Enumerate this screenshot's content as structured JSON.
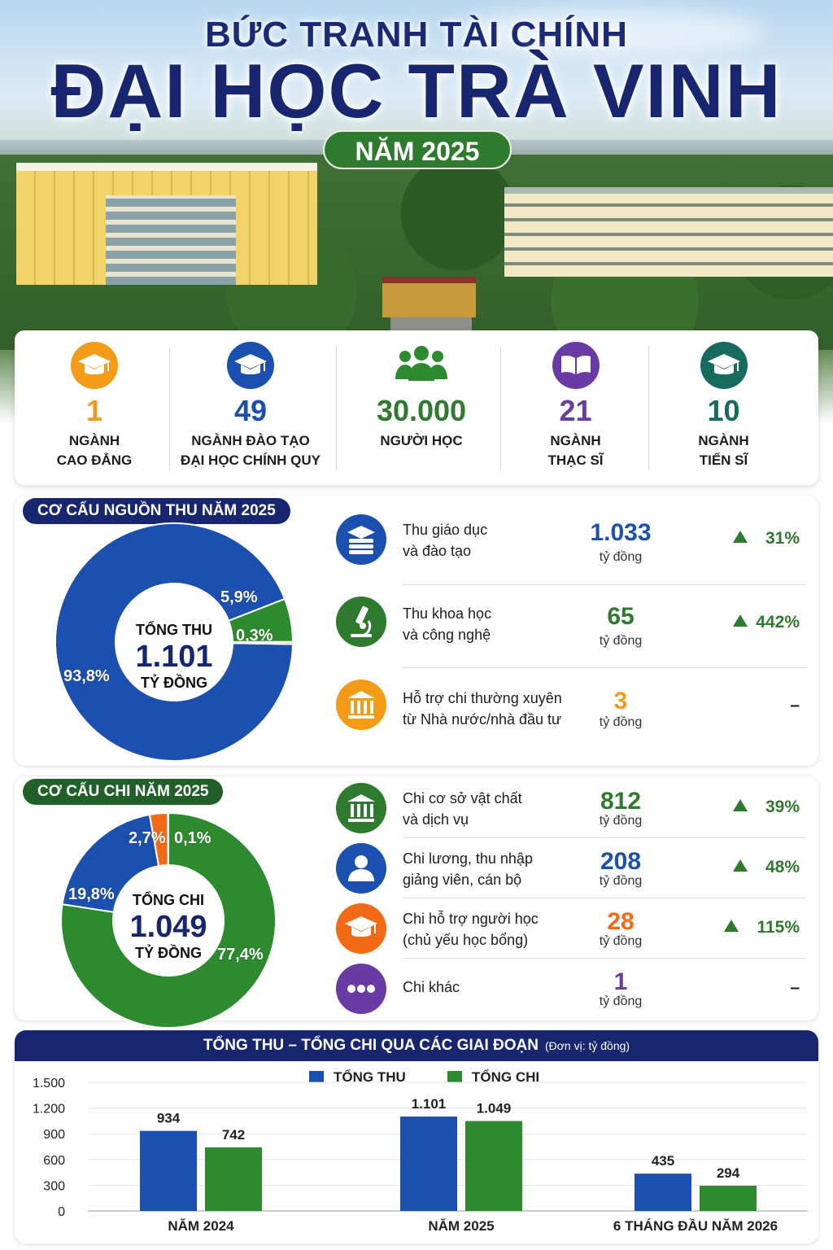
{
  "header": {
    "title_line1": "BỨC TRANH TÀI CHÍNH",
    "title_line2": "ĐẠI HỌC TRÀ VINH",
    "year": "NĂM 2025"
  },
  "stats": [
    {
      "number": "1",
      "label": "NGÀNH\nCAO ĐẲNG",
      "color": "#f39a16",
      "icon": "graduation-cap-icon"
    },
    {
      "number": "49",
      "label": "NGÀNH ĐÀO TẠO\nĐẠI HỌC CHÍNH QUY",
      "color": "#1b4fb0",
      "icon": "graduation-cap-icon"
    },
    {
      "number": "30.000",
      "label": "NGƯỜI HỌC",
      "color": "#2e7a2e",
      "icon": "people-icon"
    },
    {
      "number": "21",
      "label": "NGÀNH\nTHẠC SĨ",
      "color": "#6a3aa5",
      "icon": "open-book-icon"
    },
    {
      "number": "10",
      "label": "NGÀNH\nTIẾN SĨ",
      "color": "#176b5e",
      "icon": "graduation-cap-icon"
    }
  ],
  "revenue": {
    "badge": "CƠ CẤU NGUỒN THU NĂM 2025",
    "center_title": "TỔNG THU",
    "center_value": "1.101",
    "center_unit": "TỶ ĐỒNG",
    "items": [
      {
        "label": "Thu giáo dục\nvà đào tạo",
        "value": "1.033",
        "unit": "tỷ đồng",
        "change": "31%",
        "color": "#1b4fb0",
        "icon": "books-icon"
      },
      {
        "label": "Thu khoa học\nvà công nghệ",
        "value": "65",
        "unit": "tỷ đồng",
        "change": "442%",
        "color": "#2e7a2e",
        "icon": "microscope-icon"
      },
      {
        "label": "Hỗ trợ chi thường xuyên\ntừ Nhà nước/nhà đầu tư",
        "value": "3",
        "unit": "tỷ đồng",
        "change": "–",
        "color": "#f39a16",
        "icon": "institution-icon"
      }
    ]
  },
  "expense": {
    "badge": "CƠ CẤU CHI NĂM 2025",
    "center_title": "TỔNG CHI",
    "center_value": "1.049",
    "center_unit": "TỶ ĐỒNG",
    "items": [
      {
        "label": "Chi cơ sở vật chất\nvà dịch vụ",
        "value": "812",
        "unit": "tỷ đồng",
        "change": "39%",
        "color": "#2e7a2e",
        "icon": "building-icon"
      },
      {
        "label": "Chi lương, thu nhập\ngiảng viên, cán bộ",
        "value": "208",
        "unit": "tỷ đồng",
        "change": "48%",
        "color": "#1b4fb0",
        "icon": "person-icon"
      },
      {
        "label": "Chi hỗ trợ người học\n(chủ yếu học bổng)",
        "value": "28",
        "unit": "tỷ đồng",
        "change": "115%",
        "color": "#f36a16",
        "icon": "graduation-cap-icon"
      },
      {
        "label": "Chi khác",
        "value": "1",
        "unit": "tỷ đồng",
        "change": "–",
        "color": "#6a3aa5",
        "icon": "more-dots-icon"
      }
    ]
  },
  "bar_section": {
    "title": "TỔNG THU – TỔNG CHI QUA CÁC GIAI ĐOẠN",
    "unit_note": "(Đơn vị: tỷ đồng)"
  },
  "chart_data": [
    {
      "type": "pie",
      "title": "CƠ CẤU NGUỒN THU NĂM 2025",
      "labels": [
        "Thu giáo dục và đào tạo",
        "Thu khoa học và công nghệ",
        "Hỗ trợ chi thường xuyên từ Nhà nước/nhà đầu tư"
      ],
      "values": [
        93.8,
        5.9,
        0.3
      ],
      "value_labels": [
        "93,8%",
        "5,9%",
        "0,3%"
      ],
      "colors": [
        "#1b4fb0",
        "#2e8a2e",
        "#f39a16"
      ]
    },
    {
      "type": "pie",
      "title": "CƠ CẤU CHI NĂM 2025",
      "labels": [
        "Chi cơ sở vật chất và dịch vụ",
        "Chi lương, thu nhập giảng viên, cán bộ",
        "Chi hỗ trợ người học (chủ yếu học bổng)",
        "Chi khác"
      ],
      "values": [
        77.4,
        19.8,
        2.7,
        0.1
      ],
      "value_labels": [
        "77,4%",
        "19,8%",
        "2,7%",
        "0,1%"
      ],
      "colors": [
        "#2e8a2e",
        "#1b4fb0",
        "#f36a16",
        "#6a3aa5"
      ]
    },
    {
      "type": "bar",
      "title": "TỔNG THU – TỔNG CHI QUA CÁC GIAI ĐOẠN",
      "categories": [
        "NĂM 2024",
        "NĂM 2025",
        "6 THÁNG ĐẦU NĂM 2026"
      ],
      "series": [
        {
          "name": "TỔNG THU",
          "values": [
            934,
            1101,
            435
          ],
          "value_labels": [
            "934",
            "1.101",
            "435"
          ],
          "color": "#1b4fb0"
        },
        {
          "name": "TỔNG CHI",
          "values": [
            742,
            1049,
            294
          ],
          "value_labels": [
            "742",
            "1.049",
            "294"
          ],
          "color": "#2e8a2e"
        }
      ],
      "ylim": [
        0,
        1500
      ],
      "yticks": [
        0,
        300,
        600,
        900,
        1200,
        1500
      ],
      "ytick_labels": [
        "0",
        "300",
        "600",
        "900",
        "1.200",
        "1.500"
      ],
      "legend": "top-center",
      "grid": true
    }
  ]
}
